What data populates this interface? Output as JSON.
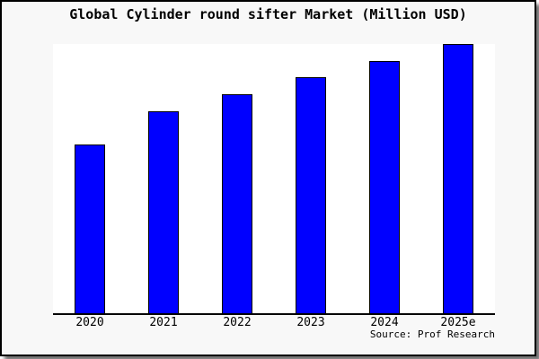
{
  "chart_data": {
    "type": "bar",
    "title": "Global Cylinder round sifter Market (Million USD)",
    "categories": [
      "2020",
      "2021",
      "2022",
      "2023",
      "2024",
      "2025e"
    ],
    "values": [
      188,
      225,
      244,
      263,
      281,
      300
    ],
    "value_note": "y-axis shows no tick labels; values are relative heights estimated from the rendered bars",
    "ylim": [
      0,
      300
    ],
    "xlabel": "",
    "ylabel": "",
    "grid": false,
    "legend_position": "none",
    "source_label": "Source: Prof Research",
    "colors": {
      "bar_fill": "#0000ff",
      "bar_border": "#000000",
      "plot_background": "#ffffff",
      "chart_background": "#f8f8f8",
      "frame_border": "#000000",
      "text": "#000000"
    }
  }
}
